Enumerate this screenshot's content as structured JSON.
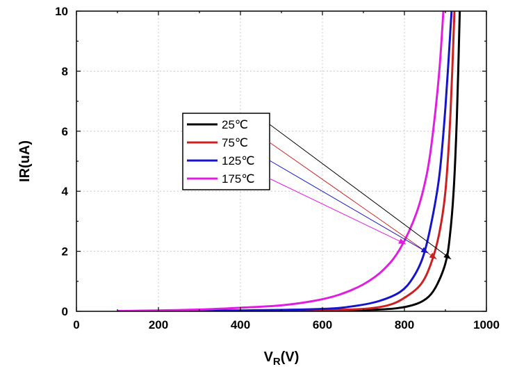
{
  "chart_data": {
    "type": "line",
    "title": "",
    "xlabel_main": "V",
    "xlabel_sub": "R",
    "xlabel_unit": "(V)",
    "ylabel": "IR(uA)",
    "xlim": [
      0,
      1000
    ],
    "ylim": [
      0,
      10
    ],
    "x_ticks": [
      0,
      200,
      400,
      600,
      800,
      1000
    ],
    "y_ticks": [
      0,
      2,
      4,
      6,
      8,
      10
    ],
    "grid": true,
    "legend_position": "center-left",
    "series": [
      {
        "name": "25℃",
        "color": "#000000",
        "points": [
          [
            100,
            0.0
          ],
          [
            400,
            0.01
          ],
          [
            600,
            0.02
          ],
          [
            700,
            0.04
          ],
          [
            780,
            0.1
          ],
          [
            830,
            0.25
          ],
          [
            860,
            0.5
          ],
          [
            880,
            0.9
          ],
          [
            900,
            1.6
          ],
          [
            910,
            2.4
          ],
          [
            920,
            4.0
          ],
          [
            928,
            6.5
          ],
          [
            935,
            10.0
          ]
        ]
      },
      {
        "name": "75℃",
        "color": "#cc1f1f",
        "points": [
          [
            100,
            0.0
          ],
          [
            400,
            0.02
          ],
          [
            600,
            0.04
          ],
          [
            700,
            0.08
          ],
          [
            760,
            0.2
          ],
          [
            800,
            0.45
          ],
          [
            840,
            0.9
          ],
          [
            865,
            1.6
          ],
          [
            885,
            2.6
          ],
          [
            900,
            4.0
          ],
          [
            912,
            6.5
          ],
          [
            922,
            10.0
          ]
        ]
      },
      {
        "name": "125℃",
        "color": "#1414cc",
        "points": [
          [
            100,
            0.01
          ],
          [
            400,
            0.03
          ],
          [
            600,
            0.08
          ],
          [
            680,
            0.18
          ],
          [
            740,
            0.35
          ],
          [
            790,
            0.65
          ],
          [
            820,
            1.1
          ],
          [
            845,
            1.8
          ],
          [
            865,
            2.9
          ],
          [
            885,
            4.5
          ],
          [
            900,
            6.8
          ],
          [
            915,
            10.0
          ]
        ]
      },
      {
        "name": "175℃",
        "color": "#e01ee0",
        "points": [
          [
            100,
            0.01
          ],
          [
            200,
            0.03
          ],
          [
            300,
            0.06
          ],
          [
            400,
            0.12
          ],
          [
            500,
            0.2
          ],
          [
            580,
            0.35
          ],
          [
            640,
            0.55
          ],
          [
            700,
            0.9
          ],
          [
            750,
            1.4
          ],
          [
            790,
            2.1
          ],
          [
            830,
            3.3
          ],
          [
            855,
            4.6
          ],
          [
            870,
            6.0
          ],
          [
            885,
            8.0
          ],
          [
            895,
            10.0
          ]
        ]
      }
    ]
  }
}
